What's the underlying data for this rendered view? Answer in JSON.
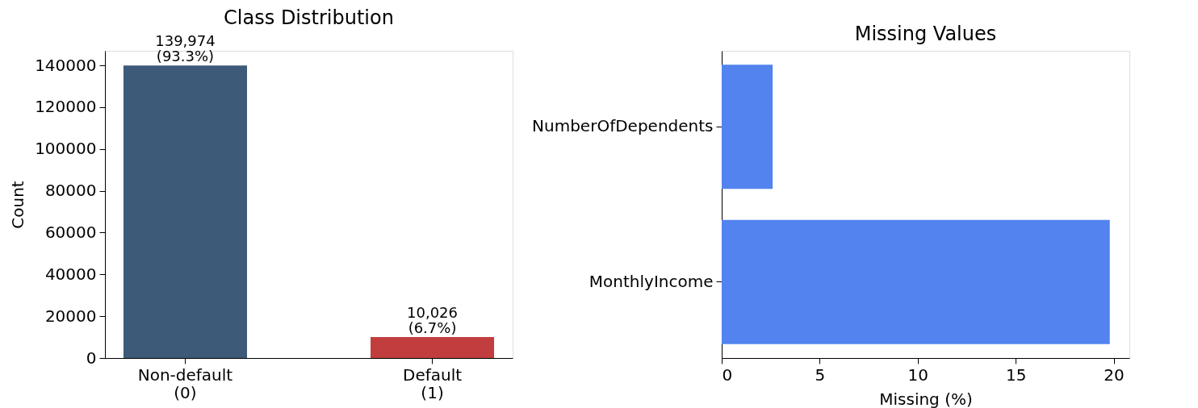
{
  "chart_data": [
    {
      "type": "bar",
      "title": "Class Distribution",
      "categories": [
        "Non-default\n(0)",
        "Default\n(1)"
      ],
      "values": [
        139974,
        10026
      ],
      "colors": [
        "#3d5a78",
        "#c23e3e"
      ],
      "value_labels": [
        "139,974\n(93.3%)",
        "10,026\n(6.7%)"
      ],
      "ylabel": "Count",
      "ylim": [
        0,
        147000
      ],
      "yticks": [
        0,
        20000,
        40000,
        60000,
        80000,
        100000,
        120000,
        140000
      ]
    },
    {
      "type": "bar",
      "orientation": "horizontal",
      "title": "Missing Values",
      "categories": [
        "NumberOfDependents",
        "MonthlyIncome"
      ],
      "values": [
        2.6,
        19.8
      ],
      "color": "#5283ee",
      "xlabel": "Missing (%)",
      "xlim": [
        0,
        20.8
      ],
      "xticks": [
        0,
        5,
        10,
        15,
        20
      ]
    }
  ]
}
